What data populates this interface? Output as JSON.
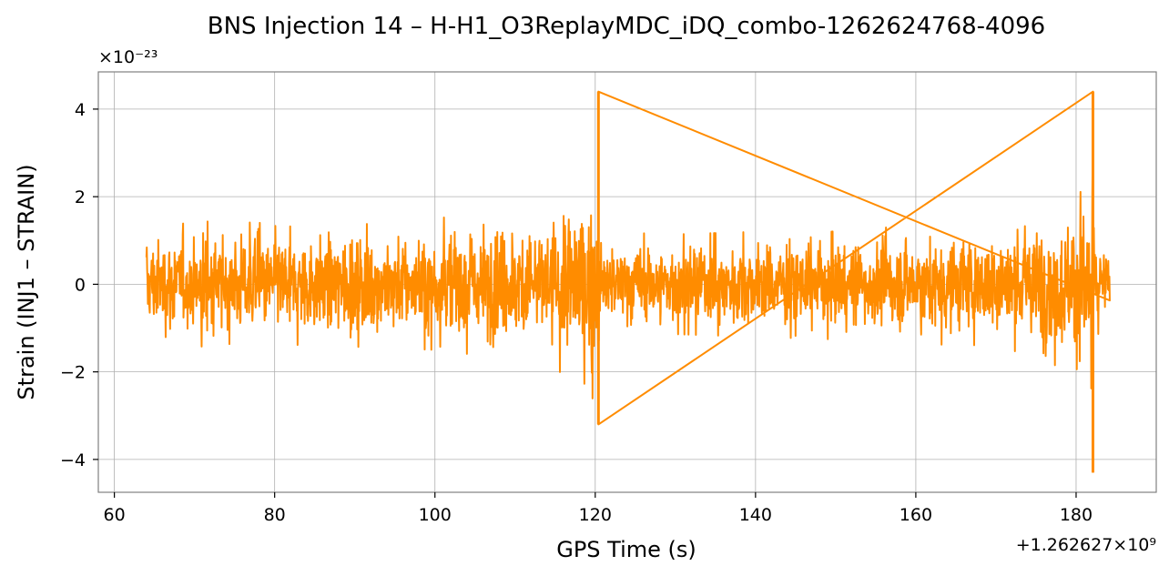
{
  "chart_data": {
    "type": "line",
    "title": "BNS Injection 14 – H-H1_O3ReplayMDC_iDQ_combo-1262624768-4096",
    "xlabel": "GPS Time (s)",
    "ylabel": "Strain (INJ1 – STRAIN)",
    "x_offset_label": "+1.262627×10⁹",
    "y_scale_label": "×10⁻²³",
    "xlim": [
      58,
      190
    ],
    "ylim": [
      -4.75,
      4.85
    ],
    "xticks": [
      60,
      80,
      100,
      120,
      140,
      160,
      180
    ],
    "xtick_labels": [
      "60",
      "80",
      "100",
      "120",
      "140",
      "160",
      "180"
    ],
    "yticks": [
      -4,
      -2,
      0,
      2,
      4
    ],
    "ytick_labels": [
      "−4",
      "−2",
      "0",
      "2",
      "4"
    ],
    "grid": true,
    "series": [
      {
        "color": "#ff8c00",
        "x_range": [
          64,
          184.2
        ],
        "noise_rms": 0.42,
        "envelope": [
          {
            "x": 64.0,
            "amp": 1.1
          },
          {
            "x": 72.0,
            "amp": 1.2
          },
          {
            "x": 82.0,
            "amp": 1.15
          },
          {
            "x": 92.0,
            "amp": 1.2
          },
          {
            "x": 100.0,
            "amp": 1.25
          },
          {
            "x": 108.0,
            "amp": 1.4
          },
          {
            "x": 114.0,
            "amp": 1.55
          },
          {
            "x": 118.0,
            "amp": 1.85
          },
          {
            "x": 119.8,
            "amp": 2.2
          },
          {
            "x": 120.6,
            "amp": 1.0
          },
          {
            "x": 130.0,
            "amp": 0.95
          },
          {
            "x": 140.0,
            "amp": 1.0
          },
          {
            "x": 150.0,
            "amp": 1.05
          },
          {
            "x": 160.0,
            "amp": 1.1
          },
          {
            "x": 170.0,
            "amp": 1.25
          },
          {
            "x": 176.0,
            "amp": 1.45
          },
          {
            "x": 180.5,
            "amp": 1.75
          },
          {
            "x": 182.0,
            "amp": 2.0
          },
          {
            "x": 182.6,
            "amp": 0.95
          },
          {
            "x": 184.2,
            "amp": 0.9
          }
        ],
        "peaks": [
          {
            "x": 120.4,
            "max": 4.4,
            "min": -3.2
          },
          {
            "x": 182.1,
            "max": 4.4,
            "min": -4.3
          }
        ]
      }
    ]
  }
}
